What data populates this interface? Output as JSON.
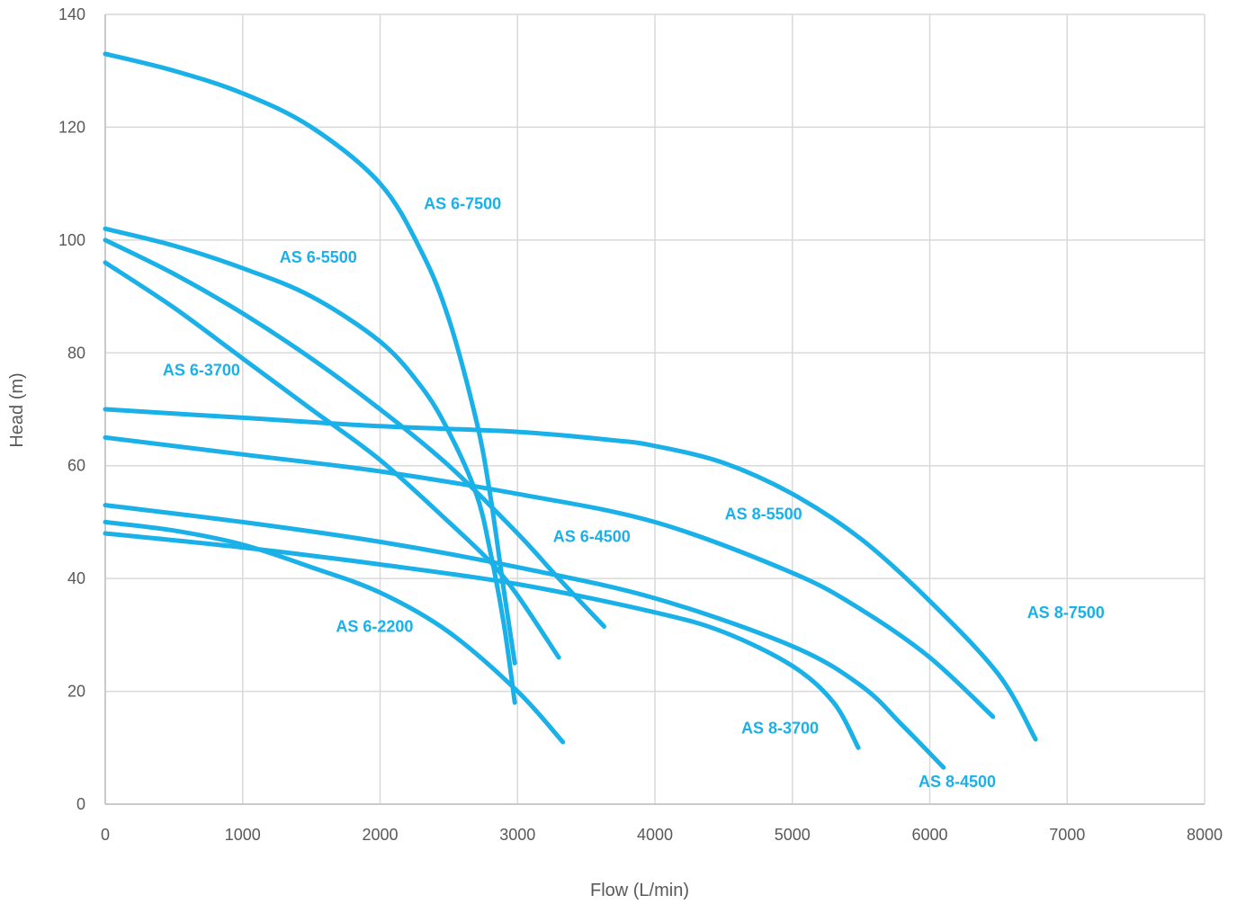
{
  "chart_data": {
    "type": "line",
    "xlabel": "Flow (L/min)",
    "ylabel": "Head (m)",
    "xlim": [
      0,
      8000
    ],
    "ylim": [
      0,
      140
    ],
    "xticks": [
      0,
      1000,
      2000,
      3000,
      4000,
      5000,
      6000,
      7000,
      8000
    ],
    "yticks": [
      0,
      20,
      40,
      60,
      80,
      100,
      120,
      140
    ],
    "grid": true,
    "legend": "none",
    "line_color": "#1ab0e8",
    "series": [
      {
        "name": "AS 6-7500",
        "points": [
          [
            0,
            133
          ],
          [
            500,
            130
          ],
          [
            1000,
            126
          ],
          [
            1500,
            120
          ],
          [
            2000,
            110
          ],
          [
            2300,
            98
          ],
          [
            2500,
            86
          ],
          [
            2700,
            68
          ],
          [
            2800,
            55
          ],
          [
            2900,
            38
          ],
          [
            2980,
            25
          ]
        ]
      },
      {
        "name": "AS 6-5500",
        "points": [
          [
            0,
            102
          ],
          [
            500,
            99
          ],
          [
            1000,
            95
          ],
          [
            1500,
            90
          ],
          [
            2000,
            82
          ],
          [
            2300,
            74
          ],
          [
            2500,
            66
          ],
          [
            2700,
            55
          ],
          [
            2800,
            45
          ],
          [
            2900,
            32
          ],
          [
            2980,
            18
          ]
        ]
      },
      {
        "name": "AS 6-3700",
        "points": [
          [
            0,
            96
          ],
          [
            500,
            88
          ],
          [
            1000,
            79
          ],
          [
            1500,
            70
          ],
          [
            2000,
            61
          ],
          [
            2500,
            50
          ],
          [
            2800,
            43
          ],
          [
            3000,
            37
          ],
          [
            3300,
            26
          ]
        ]
      },
      {
        "name": "AS 6-4500",
        "points": [
          [
            0,
            100
          ],
          [
            500,
            94
          ],
          [
            1000,
            87
          ],
          [
            1500,
            79
          ],
          [
            2000,
            70
          ],
          [
            2500,
            60
          ],
          [
            3000,
            48
          ],
          [
            3300,
            40
          ],
          [
            3630,
            31.5
          ]
        ]
      },
      {
        "name": "AS 6-2200",
        "points": [
          [
            0,
            50
          ],
          [
            500,
            48.5
          ],
          [
            1000,
            46
          ],
          [
            1500,
            42
          ],
          [
            2000,
            37.5
          ],
          [
            2500,
            30.5
          ],
          [
            3000,
            20
          ],
          [
            3330,
            11
          ]
        ]
      },
      {
        "name": "AS 8-3700",
        "points": [
          [
            0,
            48
          ],
          [
            1000,
            45.5
          ],
          [
            2000,
            42.5
          ],
          [
            3000,
            39
          ],
          [
            4000,
            34
          ],
          [
            4500,
            30.5
          ],
          [
            5000,
            24.5
          ],
          [
            5300,
            18
          ],
          [
            5480,
            10
          ]
        ]
      },
      {
        "name": "AS 8-4500",
        "points": [
          [
            0,
            53
          ],
          [
            1000,
            50
          ],
          [
            2000,
            46.5
          ],
          [
            3000,
            42
          ],
          [
            4000,
            36.5
          ],
          [
            5000,
            28
          ],
          [
            5500,
            21
          ],
          [
            5800,
            14
          ],
          [
            6100,
            6.5
          ]
        ]
      },
      {
        "name": "AS 8-5500",
        "points": [
          [
            0,
            65
          ],
          [
            1000,
            62
          ],
          [
            2000,
            59
          ],
          [
            3000,
            55
          ],
          [
            4000,
            50
          ],
          [
            5000,
            41
          ],
          [
            5500,
            34.5
          ],
          [
            6000,
            26
          ],
          [
            6460,
            15.5
          ]
        ]
      },
      {
        "name": "AS 8-7500",
        "points": [
          [
            0,
            70
          ],
          [
            1000,
            68.5
          ],
          [
            2000,
            67
          ],
          [
            3000,
            66
          ],
          [
            3700,
            64.5
          ],
          [
            4000,
            63.5
          ],
          [
            4500,
            60.5
          ],
          [
            5000,
            55
          ],
          [
            5500,
            47
          ],
          [
            6000,
            36
          ],
          [
            6500,
            23
          ],
          [
            6770,
            11.5
          ]
        ]
      }
    ],
    "annotations": [
      {
        "text": "AS 6-7500",
        "x": 2600,
        "y": 105.5
      },
      {
        "text": "AS 6-5500",
        "x": 1550,
        "y": 96
      },
      {
        "text": "AS 6-3700",
        "x": 700,
        "y": 76
      },
      {
        "text": "AS 6-4500",
        "x": 3540,
        "y": 46.5
      },
      {
        "text": "AS 6-2200",
        "x": 1960,
        "y": 30.5
      },
      {
        "text": "AS 8-3700",
        "x": 4910,
        "y": 12.5
      },
      {
        "text": "AS 8-4500",
        "x": 6200,
        "y": 3
      },
      {
        "text": "AS 8-5500",
        "x": 4790,
        "y": 50.5
      },
      {
        "text": "AS 8-7500",
        "x": 6990,
        "y": 33
      }
    ]
  }
}
